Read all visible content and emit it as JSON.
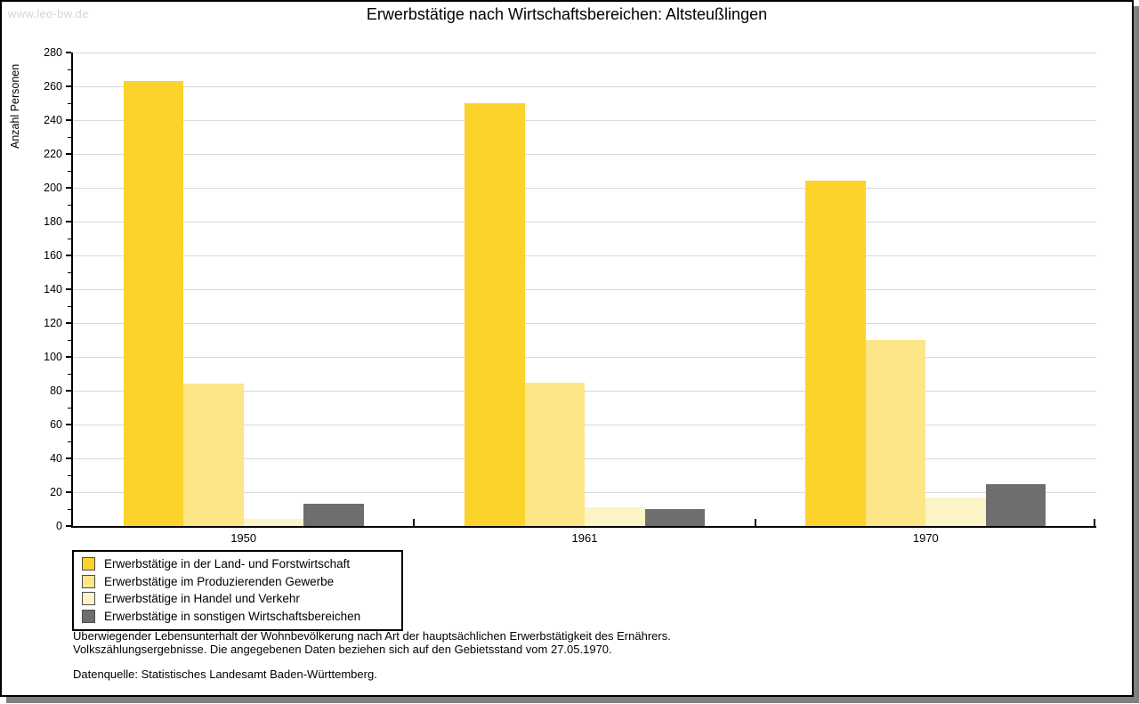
{
  "watermark": "www.leo-bw.de",
  "title": "Erwerbstätige nach Wirtschaftsbereichen: Altsteußlingen",
  "chart_data": {
    "type": "bar",
    "title": "Erwerbstätige nach Wirtschaftsbereichen: Altsteußlingen",
    "xlabel": "",
    "ylabel": "Anzahl Personen",
    "categories": [
      "1950",
      "1961",
      "1970"
    ],
    "series": [
      {
        "name": "Erwerbstätige in der Land- und Forstwirtschaft",
        "color": "#FBD32B",
        "values": [
          263,
          250,
          204
        ]
      },
      {
        "name": "Erwerbstätige im Produzierenden Gewerbe",
        "color": "#FCE688",
        "values": [
          84,
          85,
          110
        ]
      },
      {
        "name": "Erwerbstätige in Handel und Verkehr",
        "color": "#FDF4C6",
        "values": [
          4,
          11,
          17
        ]
      },
      {
        "name": "Erwerbstätige in sonstigen Wirtschaftsbereichen",
        "color": "#6E6E6E",
        "values": [
          13,
          10,
          25
        ]
      }
    ],
    "ylim": [
      0,
      280
    ],
    "ytick_step": 20,
    "grid": true,
    "legend_position": "bottom-left"
  },
  "footnote": {
    "line1": "Überwiegender Lebensunterhalt der Wohnbevölkerung nach Art der hauptsächlichen Erwerbstätigkeit des Ernährers.",
    "line2": "Volkszählungsergebnisse. Die angegebenen Daten beziehen sich auf den Gebietsstand vom 27.05.1970."
  },
  "source": "Datenquelle: Statistisches Landesamt Baden-Württemberg.",
  "colors": {
    "panel_shadow": "#808080",
    "gridline": "#D9D9D9",
    "axis": "#000000",
    "watermark_text": "#D4D4D4",
    "legend_swatch_border": "#4D4D4D"
  }
}
